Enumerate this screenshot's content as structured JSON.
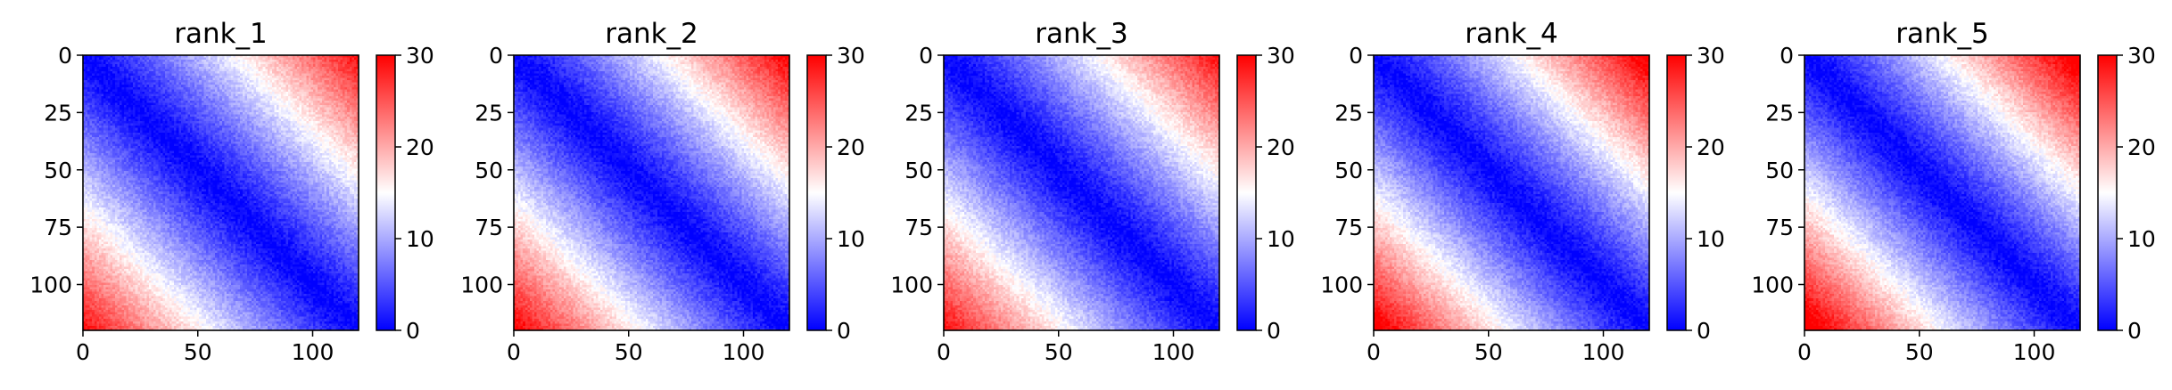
{
  "chart_data": [
    {
      "type": "heatmap",
      "title": "rank_1",
      "matrix_size": 121,
      "xticks": [
        0,
        50,
        100
      ],
      "yticks": [
        0,
        25,
        50,
        75,
        100
      ],
      "colorbar": {
        "ticks": [
          0,
          10,
          20,
          30
        ],
        "vmin": 0,
        "vmax": 30,
        "colormap": "bwr"
      },
      "pattern": {
        "far_corner_value": 28,
        "diagonal_value": 0
      }
    },
    {
      "type": "heatmap",
      "title": "rank_2",
      "matrix_size": 121,
      "xticks": [
        0,
        50,
        100
      ],
      "yticks": [
        0,
        25,
        50,
        75,
        100
      ],
      "colorbar": {
        "ticks": [
          0,
          10,
          20,
          30
        ],
        "vmin": 0,
        "vmax": 30,
        "colormap": "bwr"
      },
      "pattern": {
        "far_corner_value": 29,
        "diagonal_value": 0
      }
    },
    {
      "type": "heatmap",
      "title": "rank_3",
      "matrix_size": 121,
      "xticks": [
        0,
        50,
        100
      ],
      "yticks": [
        0,
        25,
        50,
        75,
        100
      ],
      "colorbar": {
        "ticks": [
          0,
          10,
          20,
          30
        ],
        "vmin": 0,
        "vmax": 30,
        "colormap": "bwr"
      },
      "pattern": {
        "far_corner_value": 28,
        "diagonal_value": 0
      }
    },
    {
      "type": "heatmap",
      "title": "rank_4",
      "matrix_size": 121,
      "xticks": [
        0,
        50,
        100
      ],
      "yticks": [
        0,
        25,
        50,
        75,
        100
      ],
      "colorbar": {
        "ticks": [
          0,
          10,
          20,
          30
        ],
        "vmin": 0,
        "vmax": 30,
        "colormap": "bwr"
      },
      "pattern": {
        "far_corner_value": 30,
        "diagonal_value": 0
      }
    },
    {
      "type": "heatmap",
      "title": "rank_5",
      "matrix_size": 121,
      "xticks": [
        0,
        50,
        100
      ],
      "yticks": [
        0,
        25,
        50,
        75,
        100
      ],
      "colorbar": {
        "ticks": [
          0,
          10,
          20,
          30
        ],
        "vmin": 0,
        "vmax": 30,
        "colormap": "bwr"
      },
      "pattern": {
        "far_corner_value": 31,
        "diagonal_value": 0
      }
    }
  ]
}
